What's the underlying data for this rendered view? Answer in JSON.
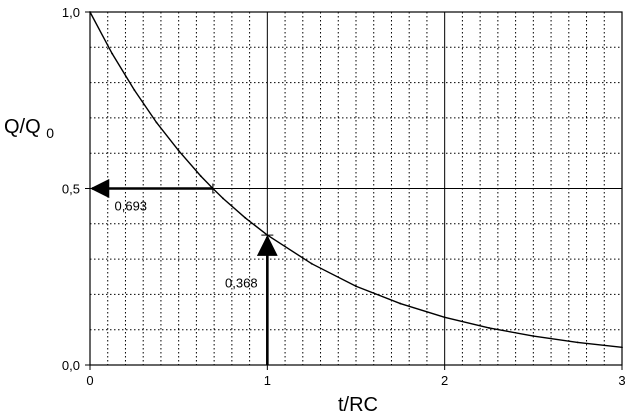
{
  "chart_data": {
    "type": "line",
    "x": [
      0,
      0.125,
      0.25,
      0.375,
      0.5,
      0.625,
      0.693,
      0.75,
      0.875,
      1.0,
      1.25,
      1.5,
      1.75,
      2.0,
      2.25,
      2.5,
      2.75,
      3.0
    ],
    "series": [
      {
        "values": [
          1.0,
          0.882,
          0.779,
          0.687,
          0.607,
          0.535,
          0.5,
          0.472,
          0.417,
          0.368,
          0.287,
          0.223,
          0.174,
          0.135,
          0.105,
          0.082,
          0.064,
          0.05
        ]
      }
    ],
    "xlabel": "t/RC",
    "ylabel_main": "Q/Q",
    "ylabel_sub": "0",
    "xlim": [
      0,
      3
    ],
    "ylim": [
      0,
      1
    ],
    "x_ticks": [
      0,
      1,
      2,
      3
    ],
    "x_tick_labels": [
      "0",
      "1",
      "2",
      "3"
    ],
    "y_ticks": [
      0,
      0.5,
      1
    ],
    "y_tick_labels": [
      "0,0",
      "0,5",
      "1,0"
    ],
    "grid": true,
    "annotations": [
      {
        "text": "0,693",
        "type": "horizontal-arrow",
        "y": 0.5,
        "x_start": 0,
        "x_end": 0.693
      },
      {
        "text": "0,368",
        "type": "vertical-arrow",
        "x": 1,
        "y_start": 0,
        "y_end": 0.368
      }
    ]
  }
}
